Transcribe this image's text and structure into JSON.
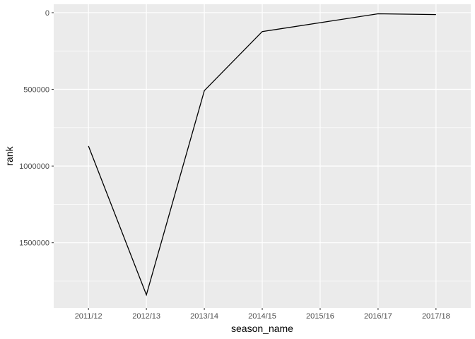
{
  "chart_data": {
    "type": "line",
    "xlabel": "season_name",
    "ylabel": "rank",
    "y_reversed": true,
    "categories": [
      "2011/12",
      "2012/13",
      "2013/14",
      "2014/15",
      "2015/16",
      "2016/17",
      "2017/18"
    ],
    "series": [
      {
        "x": [
          "2011/12",
          "2012/13",
          "2013/14",
          "2014/15",
          "2016/17",
          "2017/18"
        ],
        "values": [
          870000,
          1840000,
          508000,
          123000,
          7000,
          12000
        ]
      }
    ],
    "ylim": [
      1925000,
      -55000
    ],
    "y_ticks": [
      0,
      500000,
      1000000,
      1500000
    ],
    "y_tick_labels": [
      "0",
      "500000",
      "1000000",
      "1500000"
    ],
    "grid": true,
    "colors": {
      "panel": "#ebebeb",
      "grid": "#ffffff",
      "line": "#000000"
    }
  }
}
